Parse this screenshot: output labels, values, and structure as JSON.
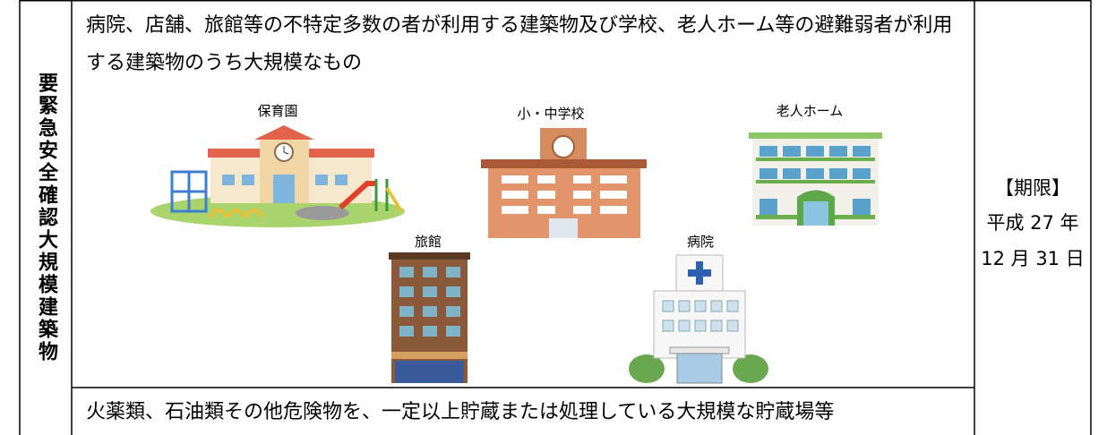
{
  "table": {
    "category": "要緊急安全確認大規模建築物",
    "rows": [
      {
        "text": "病院、店舗、旅館等の不特定多数の者が利用する建築物及び学校、老人ホーム等の避難弱者が利用する建築物のうち大規模なもの"
      },
      {
        "text": "火薬類、石油類その他危険物を、一定以上貯蔵または処理している大規模な貯蔵場等"
      }
    ],
    "deadline": [
      "【期限】",
      "平成 27 年",
      "12 月 31 日"
    ]
  },
  "illustrations": [
    {
      "label": "保育園"
    },
    {
      "label": "小・中学校"
    },
    {
      "label": "老人ホーム"
    },
    {
      "label": "旅館"
    },
    {
      "label": "病院"
    }
  ]
}
